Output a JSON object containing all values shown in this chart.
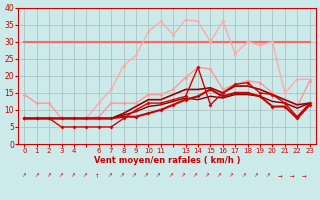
{
  "bg_color": "#cceaea",
  "grid_color": "#aabbbb",
  "xlabel": "Vent moyen/en rafales ( km/h )",
  "xlabel_color": "#cc0000",
  "tick_color": "#cc0000",
  "xlim": [
    -0.5,
    23.5
  ],
  "ylim": [
    0,
    40
  ],
  "yticks": [
    0,
    5,
    10,
    15,
    20,
    25,
    30,
    35,
    40
  ],
  "series": [
    {
      "comment": "light pink - rafales high (top spiky line)",
      "x": [
        0,
        1,
        2,
        3,
        4,
        5,
        6,
        7,
        8,
        9,
        10,
        11,
        12,
        13,
        14,
        15,
        16,
        17,
        18,
        19,
        20,
        21,
        22,
        23
      ],
      "y": [
        7.5,
        7.5,
        7.5,
        7.5,
        7.5,
        7.5,
        12,
        16,
        23,
        26,
        33,
        36,
        32,
        36.5,
        36,
        30,
        36,
        26.5,
        30,
        29,
        30,
        15,
        19,
        19
      ],
      "color": "#ffaaaa",
      "lw": 1.0,
      "marker": "D",
      "ms": 2.0,
      "zorder": 3
    },
    {
      "comment": "light pink - medium line with diamonds",
      "x": [
        0,
        1,
        2,
        3,
        4,
        5,
        6,
        7,
        8,
        9,
        10,
        11,
        12,
        13,
        14,
        15,
        16,
        17,
        18,
        19,
        20,
        21,
        22,
        23
      ],
      "y": [
        14.5,
        12,
        12,
        7.5,
        7.5,
        7.5,
        8,
        12,
        12,
        12,
        14.5,
        14.5,
        16,
        19.5,
        22.5,
        22,
        16,
        17.5,
        18.5,
        18,
        15,
        12,
        11,
        18.5
      ],
      "color": "#ff9999",
      "lw": 1.0,
      "marker": "D",
      "ms": 2.0,
      "zorder": 4
    },
    {
      "comment": "horizontal line at 30",
      "x": [
        0,
        23
      ],
      "y": [
        30,
        30
      ],
      "color": "#ff6666",
      "lw": 1.5,
      "marker": null,
      "ms": 0,
      "zorder": 2
    },
    {
      "comment": "dark red smooth rising line 1 (uppermost smooth)",
      "x": [
        0,
        1,
        2,
        3,
        4,
        5,
        6,
        7,
        8,
        9,
        10,
        11,
        12,
        13,
        14,
        15,
        16,
        17,
        18,
        19,
        20,
        21,
        22,
        23
      ],
      "y": [
        7.5,
        7.5,
        7.5,
        7.5,
        7.5,
        7.5,
        7.5,
        7.5,
        9,
        11,
        13,
        13,
        14.5,
        16,
        16,
        16.5,
        15,
        17,
        17,
        16,
        14.5,
        13,
        11.5,
        12
      ],
      "color": "#990000",
      "lw": 1.2,
      "marker": null,
      "ms": 0,
      "zorder": 5
    },
    {
      "comment": "dark red smooth rising line 2 (lower smooth)",
      "x": [
        0,
        1,
        2,
        3,
        4,
        5,
        6,
        7,
        8,
        9,
        10,
        11,
        12,
        13,
        14,
        15,
        16,
        17,
        18,
        19,
        20,
        21,
        22,
        23
      ],
      "y": [
        7.5,
        7.5,
        7.5,
        7.5,
        7.5,
        7.5,
        7.5,
        7.5,
        8.5,
        9.5,
        11,
        11.5,
        12.5,
        13.5,
        13,
        14,
        13.5,
        14.5,
        14.5,
        14,
        12.5,
        12,
        10.5,
        12
      ],
      "color": "#770000",
      "lw": 1.0,
      "marker": null,
      "ms": 0,
      "zorder": 5
    },
    {
      "comment": "bright red with diamonds - upper spiky",
      "x": [
        0,
        1,
        2,
        3,
        4,
        5,
        6,
        7,
        8,
        9,
        10,
        11,
        12,
        13,
        14,
        15,
        16,
        17,
        18,
        19,
        20,
        21,
        22,
        23
      ],
      "y": [
        7.5,
        7.5,
        7.5,
        5,
        5,
        5,
        5,
        5,
        7.5,
        10,
        12,
        12,
        13,
        14,
        22.5,
        11.5,
        15,
        17.5,
        18,
        15,
        14.5,
        12,
        8,
        12
      ],
      "color": "#dd0000",
      "lw": 1.0,
      "marker": "D",
      "ms": 2.0,
      "zorder": 6
    },
    {
      "comment": "bright red with diamonds - lower main",
      "x": [
        0,
        1,
        2,
        3,
        4,
        5,
        6,
        7,
        8,
        9,
        10,
        11,
        12,
        13,
        14,
        15,
        16,
        17,
        18,
        19,
        20,
        21,
        22,
        23
      ],
      "y": [
        7.5,
        7.5,
        7.5,
        7.5,
        7.5,
        7.5,
        7.5,
        7.5,
        8,
        8,
        9,
        10,
        11.5,
        13,
        14,
        16,
        14,
        15,
        15,
        14,
        11,
        11,
        7.5,
        11.5
      ],
      "color": "#cc0000",
      "lw": 1.5,
      "marker": "D",
      "ms": 2.0,
      "zorder": 7
    }
  ]
}
